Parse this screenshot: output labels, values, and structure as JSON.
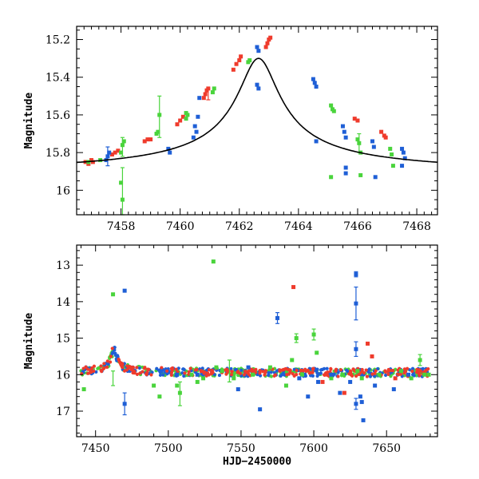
{
  "figure_title": "",
  "chart_data": [
    {
      "type": "scatter",
      "panel": "top",
      "title": "",
      "xlabel": "",
      "ylabel": "Magnitude",
      "xlim": [
        7456.5,
        7468.7
      ],
      "ylim": [
        16.13,
        15.13
      ],
      "y_inverted": true,
      "xticks": [
        7458,
        7460,
        7462,
        7464,
        7466,
        7468
      ],
      "yticks": [
        15.2,
        15.4,
        15.6,
        15.8,
        16
      ],
      "ytick_labels": [
        "15.2",
        "15.4",
        "15.6",
        "15.8",
        "16"
      ],
      "colors": {
        "blue": "#1f5fd6",
        "red": "#ef3b2c",
        "green": "#4ad43c",
        "model": "#000000"
      },
      "model_curve": {
        "description": "single-lens microlensing fit",
        "peak_x": 7462.65,
        "peak_mag": 15.3,
        "baseline_mag": 15.92
      },
      "series": [
        {
          "color_key": "red",
          "points": [
            [
              7456.8,
              15.85
            ],
            [
              7456.9,
              15.86
            ],
            [
              7457.0,
              15.84
            ],
            [
              7457.05,
              15.85
            ],
            [
              7457.7,
              15.81
            ],
            [
              7457.8,
              15.8
            ],
            [
              7457.9,
              15.79
            ],
            [
              7458.8,
              15.74
            ],
            [
              7458.9,
              15.73
            ],
            [
              7459.0,
              15.73
            ],
            [
              7459.9,
              15.65
            ],
            [
              7460.0,
              15.63
            ],
            [
              7460.1,
              15.61
            ],
            [
              7460.8,
              15.51
            ],
            [
              7460.85,
              15.49
            ],
            [
              7460.9,
              15.47
            ],
            [
              7460.95,
              15.46
            ],
            [
              7461.8,
              15.36
            ],
            [
              7461.9,
              15.33
            ],
            [
              7462.0,
              15.31
            ],
            [
              7462.05,
              15.29
            ],
            [
              7462.9,
              15.24
            ],
            [
              7462.95,
              15.22
            ],
            [
              7463.0,
              15.2
            ],
            [
              7463.05,
              15.19
            ],
            [
              7465.9,
              15.62
            ],
            [
              7466.0,
              15.63
            ],
            [
              7466.8,
              15.69
            ],
            [
              7466.9,
              15.71
            ],
            [
              7466.95,
              15.72
            ]
          ]
        },
        {
          "color_key": "blue",
          "points": [
            [
              7457.5,
              15.84
            ],
            [
              7457.55,
              15.82
            ],
            [
              7457.6,
              15.8
            ],
            [
              7459.6,
              15.78
            ],
            [
              7459.65,
              15.8
            ],
            [
              7460.5,
              15.66
            ],
            [
              7460.55,
              15.69
            ],
            [
              7460.45,
              15.72
            ],
            [
              7460.6,
              15.61
            ],
            [
              7460.65,
              15.51
            ],
            [
              7462.6,
              15.24
            ],
            [
              7462.65,
              15.26
            ],
            [
              7462.6,
              15.44
            ],
            [
              7462.65,
              15.46
            ],
            [
              7464.5,
              15.41
            ],
            [
              7464.55,
              15.43
            ],
            [
              7464.6,
              15.45
            ],
            [
              7464.6,
              15.74
            ],
            [
              7465.5,
              15.66
            ],
            [
              7465.55,
              15.69
            ],
            [
              7465.6,
              15.72
            ],
            [
              7465.6,
              15.91
            ],
            [
              7466.5,
              15.74
            ],
            [
              7466.55,
              15.77
            ],
            [
              7467.5,
              15.78
            ],
            [
              7467.55,
              15.8
            ],
            [
              7467.6,
              15.83
            ],
            [
              7466.6,
              15.93
            ],
            [
              7467.5,
              15.87
            ],
            [
              7465.6,
              15.88
            ]
          ]
        },
        {
          "color_key": "green",
          "points": [
            [
              7456.9,
              15.85
            ],
            [
              7457.3,
              15.84
            ],
            [
              7458.0,
              15.8
            ],
            [
              7458.05,
              15.76
            ],
            [
              7458.1,
              15.74
            ],
            [
              7458.05,
              16.05
            ],
            [
              7458.0,
              15.96
            ],
            [
              7459.2,
              15.7
            ],
            [
              7459.25,
              15.69
            ],
            [
              7459.3,
              15.6
            ],
            [
              7460.2,
              15.62
            ],
            [
              7460.25,
              15.6
            ],
            [
              7460.2,
              15.59
            ],
            [
              7461.1,
              15.48
            ],
            [
              7461.15,
              15.46
            ],
            [
              7462.3,
              15.32
            ],
            [
              7462.35,
              15.31
            ],
            [
              7465.1,
              15.55
            ],
            [
              7465.15,
              15.57
            ],
            [
              7465.1,
              15.93
            ],
            [
              7466.0,
              15.73
            ],
            [
              7466.05,
              15.75
            ],
            [
              7466.1,
              15.8
            ],
            [
              7466.1,
              15.92
            ],
            [
              7467.1,
              15.78
            ],
            [
              7467.15,
              15.81
            ],
            [
              7467.2,
              15.87
            ],
            [
              7465.2,
              15.58
            ]
          ]
        }
      ],
      "error_bars": [
        {
          "color_key": "green",
          "x": 7458.05,
          "y": 15.98,
          "low": 15.88,
          "high": 16.13
        },
        {
          "color_key": "green",
          "x": 7459.3,
          "y": 15.6,
          "low": 15.5,
          "high": 15.72
        },
        {
          "color_key": "blue",
          "x": 7457.55,
          "y": 15.82,
          "low": 15.77,
          "high": 15.87
        },
        {
          "color_key": "green",
          "x": 7458.05,
          "y": 15.76,
          "low": 15.72,
          "high": 15.82
        },
        {
          "color_key": "red",
          "x": 7460.95,
          "y": 15.48,
          "low": 15.46,
          "high": 15.52
        },
        {
          "color_key": "green",
          "x": 7466.05,
          "y": 15.75,
          "low": 15.7,
          "high": 15.8
        }
      ]
    },
    {
      "type": "scatter",
      "panel": "bottom",
      "title": "",
      "xlabel": "HJD−2450000",
      "ylabel": "Magnitude",
      "xlim": [
        7437,
        7685
      ],
      "ylim": [
        17.7,
        12.45
      ],
      "y_inverted": true,
      "xticks": [
        7450,
        7500,
        7550,
        7600,
        7650
      ],
      "yticks": [
        13,
        14,
        15,
        16,
        17
      ],
      "ytick_labels": [
        "13",
        "14",
        "15",
        "16",
        "17"
      ],
      "baseline_mag": 15.95,
      "event": {
        "peak_x": 7462.6,
        "peak_mag": 15.2
      },
      "series": [
        {
          "color_key": "green",
          "points": [
            [
              7442,
              16.4
            ],
            [
              7462,
              13.8
            ],
            [
              7490,
              16.3
            ],
            [
              7494,
              16.6
            ],
            [
              7506,
              16.3
            ],
            [
              7508,
              16.5
            ],
            [
              7516,
              16.0
            ],
            [
              7520,
              16.2
            ],
            [
              7524,
              16.1
            ],
            [
              7531,
              12.9
            ],
            [
              7533,
              15.8
            ],
            [
              7537,
              15.9
            ],
            [
              7545,
              16.1
            ],
            [
              7558,
              16.0
            ],
            [
              7570,
              15.8
            ],
            [
              7581,
              16.3
            ],
            [
              7585,
              15.6
            ],
            [
              7588,
              15.0
            ],
            [
              7592,
              16.0
            ],
            [
              7600,
              14.9
            ],
            [
              7602,
              15.4
            ],
            [
              7612,
              16.1
            ],
            [
              7620,
              16.0
            ],
            [
              7630,
              15.9
            ],
            [
              7633,
              16.1
            ],
            [
              7645,
              16.0
            ],
            [
              7660,
              15.9
            ],
            [
              7667,
              16.1
            ],
            [
              7673,
              15.6
            ],
            [
              7676,
              16.0
            ],
            [
              7679,
              16.0
            ]
          ]
        },
        {
          "color_key": "blue",
          "points": [
            [
              7470,
              13.7
            ],
            [
              7470,
              16.8
            ],
            [
              7506,
              16.0
            ],
            [
              7520,
              16.0
            ],
            [
              7548,
              16.4
            ],
            [
              7555,
              15.8
            ],
            [
              7563,
              16.95
            ],
            [
              7575,
              14.45
            ],
            [
              7590,
              16.1
            ],
            [
              7596,
              16.6
            ],
            [
              7603,
              16.2
            ],
            [
              7612,
              16.0
            ],
            [
              7618,
              16.5
            ],
            [
              7625,
              16.2
            ],
            [
              7629,
              13.25
            ],
            [
              7629,
              14.05
            ],
            [
              7629,
              15.3
            ],
            [
              7629,
              16.8
            ],
            [
              7632,
              16.6
            ],
            [
              7633,
              16.75
            ],
            [
              7634,
              17.25
            ],
            [
              7642,
              16.3
            ],
            [
              7655,
              16.4
            ],
            [
              7665,
              16.0
            ]
          ]
        },
        {
          "color_key": "red",
          "points": [
            [
              7586,
              13.6
            ],
            [
              7606,
              16.2
            ],
            [
              7621,
              16.5
            ],
            [
              7637,
              15.15
            ],
            [
              7640,
              15.5
            ],
            [
              7656,
              16.1
            ]
          ]
        }
      ],
      "error_bars": [
        {
          "color_key": "blue",
          "x": 7470,
          "y": 16.8,
          "low": 16.5,
          "high": 17.1
        },
        {
          "color_key": "blue",
          "x": 7575,
          "y": 14.45,
          "low": 14.3,
          "high": 14.6
        },
        {
          "color_key": "blue",
          "x": 7629,
          "y": 14.05,
          "low": 13.6,
          "high": 14.5
        },
        {
          "color_key": "blue",
          "x": 7629,
          "y": 15.3,
          "low": 15.1,
          "high": 15.5
        },
        {
          "color_key": "blue",
          "x": 7629,
          "y": 13.25,
          "low": 13.18,
          "high": 13.32
        },
        {
          "color_key": "blue",
          "x": 7629,
          "y": 16.8,
          "low": 16.65,
          "high": 16.95
        },
        {
          "color_key": "green",
          "x": 7600,
          "y": 14.9,
          "low": 14.75,
          "high": 15.05
        },
        {
          "color_key": "green",
          "x": 7588,
          "y": 15.0,
          "low": 14.88,
          "high": 15.12
        },
        {
          "color_key": "green",
          "x": 7673,
          "y": 15.6,
          "low": 15.45,
          "high": 15.75
        },
        {
          "color_key": "green",
          "x": 7508,
          "y": 16.5,
          "low": 16.2,
          "high": 16.85
        },
        {
          "color_key": "green",
          "x": 7462,
          "y": 16.1,
          "low": 15.9,
          "high": 16.3
        },
        {
          "color_key": "green",
          "x": 7542,
          "y": 15.9,
          "low": 15.6,
          "high": 16.2
        }
      ]
    }
  ]
}
